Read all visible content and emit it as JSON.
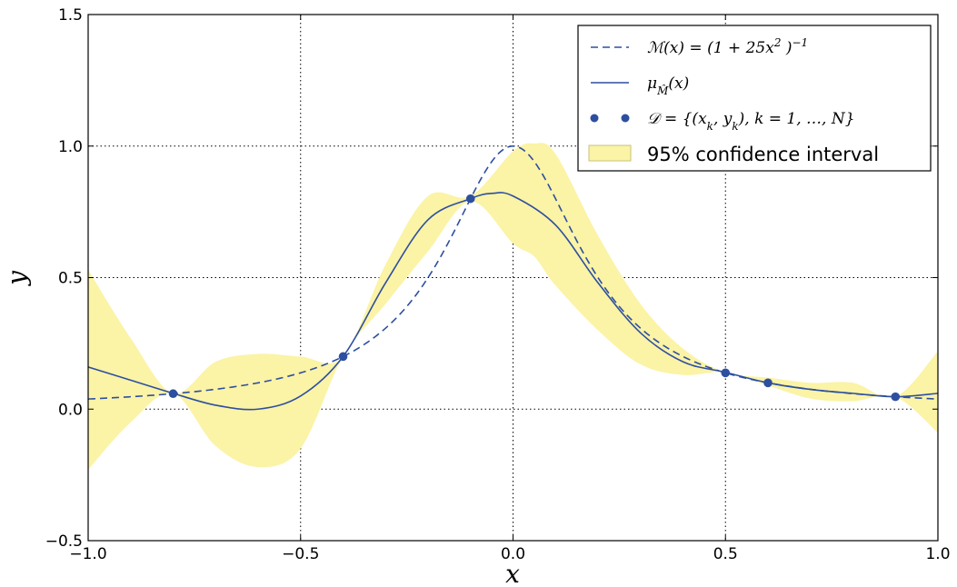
{
  "chart_data": {
    "type": "line",
    "title": "",
    "xlabel": "x",
    "ylabel": "y",
    "xlim": [
      -1.0,
      1.0
    ],
    "ylim": [
      -0.5,
      1.5
    ],
    "xticks": [
      "−1.0",
      "−0.5",
      "0.0",
      "0.5",
      "1.0"
    ],
    "yticks": [
      "−0.5",
      "0.0",
      "0.5",
      "1.0",
      "1.5"
    ],
    "xtick_values": [
      -1.0,
      -0.5,
      0.0,
      0.5,
      1.0
    ],
    "ytick_values": [
      -0.5,
      0.0,
      0.5,
      1.0,
      1.5
    ],
    "grid": true,
    "legend_position": "top-right",
    "colors": {
      "line": "#2d4fa0",
      "band_fill": "#fbf3a6",
      "band_edge": "#c8c27a"
    },
    "series": [
      {
        "name": "ℳ(x) = (1 + 25x² )⁻¹",
        "style": "dashed",
        "function": "1/(1+25x^2)"
      },
      {
        "name": "μ_M̂(x)",
        "style": "solid",
        "x": [
          -1.0,
          -0.9,
          -0.8,
          -0.7,
          -0.6,
          -0.5,
          -0.4,
          -0.3,
          -0.2,
          -0.1,
          -0.05,
          0.0,
          0.1,
          0.2,
          0.3,
          0.4,
          0.5,
          0.6,
          0.7,
          0.8,
          0.9,
          1.0
        ],
        "y": [
          0.16,
          0.11,
          0.06,
          0.015,
          0.0,
          0.05,
          0.2,
          0.48,
          0.72,
          0.8,
          0.82,
          0.81,
          0.7,
          0.48,
          0.29,
          0.18,
          0.14,
          0.1,
          0.075,
          0.06,
          0.047,
          0.06
        ]
      },
      {
        "name": "𝒟 = {(x_k, y_k), k = 1, …, N}",
        "style": "markers",
        "x": [
          -0.8,
          -0.4,
          -0.1,
          0.5,
          0.6,
          0.9
        ],
        "y": [
          0.0588,
          0.2,
          0.8,
          0.1379,
          0.1,
          0.0471
        ]
      },
      {
        "name": "95% confidence interval",
        "style": "band",
        "x": [
          -1.0,
          -0.9,
          -0.8,
          -0.7,
          -0.6,
          -0.5,
          -0.4,
          -0.3,
          -0.2,
          -0.1,
          0.0,
          0.05,
          0.1,
          0.2,
          0.3,
          0.4,
          0.5,
          0.6,
          0.7,
          0.8,
          0.9,
          1.0
        ],
        "lower": [
          -0.23,
          -0.05,
          0.06,
          -0.14,
          -0.22,
          -0.15,
          0.2,
          0.4,
          0.6,
          0.79,
          0.63,
          0.58,
          0.47,
          0.3,
          0.17,
          0.13,
          0.14,
          0.09,
          0.04,
          0.03,
          0.047,
          -0.09
        ],
        "upper": [
          0.53,
          0.27,
          0.06,
          0.18,
          0.21,
          0.2,
          0.2,
          0.55,
          0.81,
          0.81,
          0.98,
          1.01,
          0.97,
          0.66,
          0.4,
          0.23,
          0.14,
          0.12,
          0.1,
          0.1,
          0.047,
          0.22
        ]
      }
    ],
    "legend": {
      "entry1": {
        "pre": "ℳ(x) = (1 + 25x",
        "sup": "2",
        "post": " )",
        "sup2": "−1"
      },
      "entry2": {
        "pre": "μ",
        "sub": "M̂",
        "post": "(x)"
      },
      "entry3": {
        "pre": "𝒟 = {(x",
        "sub1": "k",
        "mid": ", y",
        "sub2": "k",
        "post": "), k = 1, …, N}"
      },
      "entry4": "95% confidence interval"
    }
  }
}
